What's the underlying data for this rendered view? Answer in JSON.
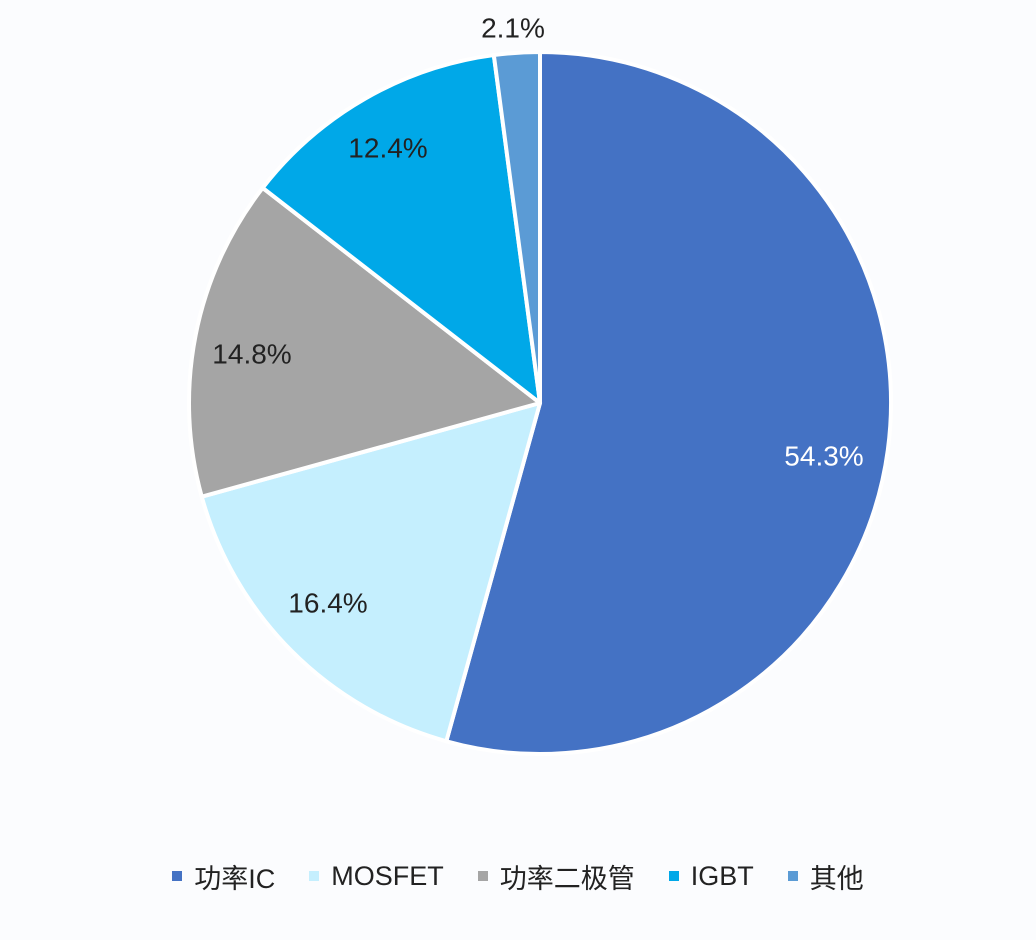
{
  "chart_data": {
    "type": "pie",
    "title": "",
    "slices": [
      {
        "name": "功率IC",
        "value": 54.3,
        "label": "54.3%",
        "color": "#4472c4",
        "label_color": "#ffffff"
      },
      {
        "name": "MOSFET",
        "value": 16.4,
        "label": "16.4%",
        "color": "#c5effe",
        "label_color": "#222222"
      },
      {
        "name": "功率二极管",
        "value": 14.8,
        "label": "14.8%",
        "color": "#a5a5a5",
        "label_color": "#222222"
      },
      {
        "name": "IGBT",
        "value": 12.4,
        "label": "12.4%",
        "color": "#00a8e8",
        "label_color": "#222222"
      },
      {
        "name": "其他",
        "value": 2.1,
        "label": "2.1%",
        "color": "#5b9bd5",
        "label_color": "#222222"
      }
    ],
    "legend_position": "bottom"
  }
}
